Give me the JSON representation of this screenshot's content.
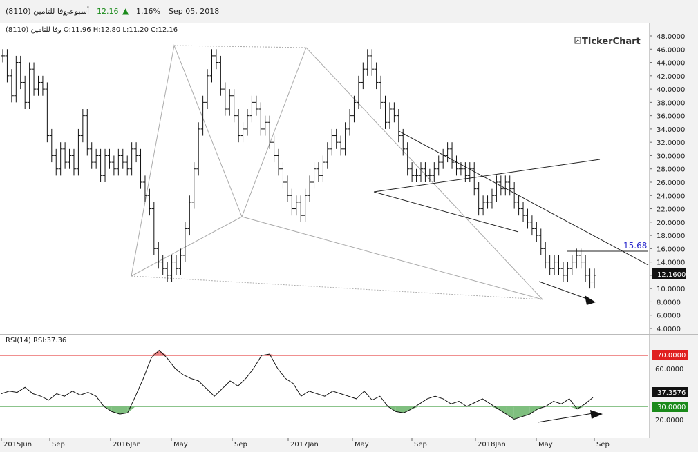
{
  "header": {
    "symbol": "وفا للتامين (8110)",
    "period": "أسبوعي",
    "close": "12.16",
    "change": "1.16%",
    "date": "Sep 05, 2018",
    "arrow_icon": "up-triangle-icon",
    "up_color": "#1a8a1a"
  },
  "ohlc_label": "وفا للتامين (8110)  O:11.96  H:12.80  L:11.20  C:12.16",
  "logo": "TickerChart",
  "rsi_label": "RSI(14)  RSI:37.36",
  "price_panel": {
    "y_ticks": [
      "48.0000",
      "46.0000",
      "44.0000",
      "42.0000",
      "40.0000",
      "38.0000",
      "36.0000",
      "34.0000",
      "32.0000",
      "30.0000",
      "28.0000",
      "26.0000",
      "24.0000",
      "22.0000",
      "20.0000",
      "18.0000",
      "16.0000",
      "14.0000",
      "12.0000",
      "10.0000",
      "8.0000",
      "6.0000",
      "4.0000"
    ],
    "last_price": "12.1600",
    "annotation": "15.68"
  },
  "rsi_panel": {
    "y_ticks": [
      "60.0000",
      "20.0000"
    ],
    "upper_label": "70.0000",
    "lower_label": "30.0000",
    "current_label": "37.3576",
    "upper_color": "#e02020",
    "lower_color": "#1a8a1a"
  },
  "x_ticks": [
    "2015Jun",
    "Sep",
    "2016Jan",
    "May",
    "Sep",
    "2017Jan",
    "May",
    "Sep",
    "2018Jan",
    "May",
    "Sep"
  ],
  "chart_data": [
    {
      "type": "ohlc",
      "ylim": [
        4,
        48
      ],
      "values": [
        [
          45,
          42,
          39,
          44,
          41,
          38,
          43,
          40,
          41
        ],
        [
          40,
          33,
          30,
          28,
          31,
          29,
          30,
          28,
          33
        ],
        [
          36,
          31,
          29,
          30,
          27,
          30,
          29,
          28,
          30
        ],
        [
          29,
          28,
          31,
          30,
          26,
          24,
          22,
          16,
          14
        ],
        [
          13,
          12,
          14,
          13,
          15,
          19,
          23,
          28,
          34
        ],
        [
          38,
          42,
          45,
          44,
          40,
          37,
          39,
          36,
          33
        ],
        [
          34,
          36,
          38,
          37,
          34,
          35,
          32,
          30,
          28
        ],
        [
          26,
          24,
          22,
          23,
          21,
          24,
          26,
          28,
          27
        ],
        [
          29,
          31,
          33,
          32,
          31,
          34,
          36,
          38,
          41
        ],
        [
          43,
          45,
          43,
          41,
          38,
          35,
          37,
          36,
          33
        ],
        [
          31,
          28,
          27,
          27,
          28,
          27,
          27,
          28,
          29
        ],
        [
          30,
          31,
          29,
          28,
          28,
          27,
          28,
          25,
          22
        ],
        [
          23,
          23,
          24,
          26,
          25,
          26,
          25,
          23,
          22
        ],
        [
          21,
          20,
          19,
          18,
          16,
          14,
          13,
          14,
          13
        ],
        [
          12,
          13,
          14,
          15,
          14,
          12,
          11,
          12
        ]
      ]
    },
    {
      "type": "line",
      "series": [
        {
          "name": "RSI(14)",
          "values": [
            40,
            42,
            41,
            45,
            40,
            38,
            35,
            40,
            38,
            42,
            39,
            41,
            38,
            30,
            26,
            24,
            25,
            38,
            52,
            68,
            74,
            68,
            60,
            55,
            52,
            50,
            44,
            38,
            44,
            50,
            46,
            52,
            60,
            70,
            71,
            60,
            52,
            48,
            38,
            42,
            40,
            38,
            42,
            40,
            38,
            36,
            42,
            35,
            38,
            30,
            26,
            25,
            28,
            32,
            36,
            38,
            36,
            32,
            34,
            30,
            33,
            36,
            32,
            28,
            24,
            20,
            22,
            24,
            28,
            30,
            34,
            32,
            36,
            28,
            32,
            37
          ]
        }
      ],
      "ylim": [
        0,
        100
      ]
    }
  ]
}
